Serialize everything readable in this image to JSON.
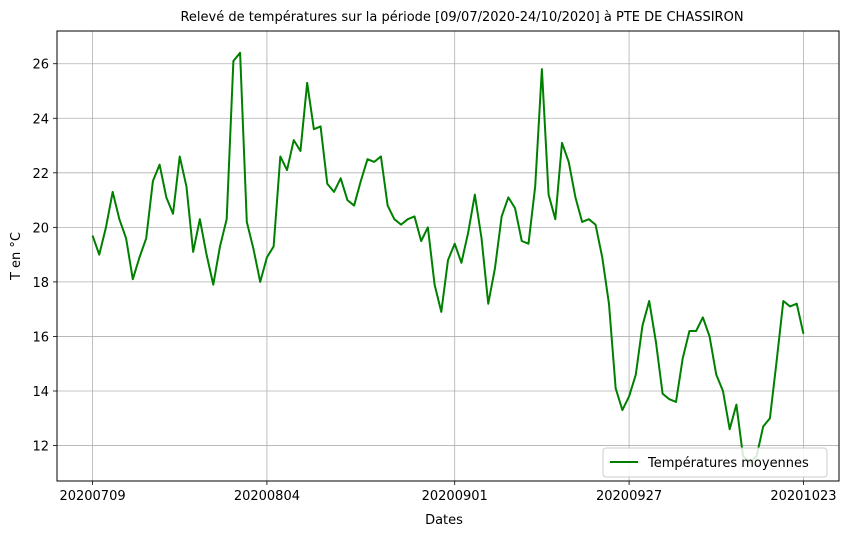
{
  "chart_data": {
    "type": "line",
    "title": "Relevé de températures sur la période [09/07/2020-24/10/2020] à PTE DE CHASSIRON",
    "xlabel": "Dates",
    "ylabel": "T en °C",
    "x_ticks": [
      {
        "day": 0,
        "label": "20200709"
      },
      {
        "day": 26,
        "label": "20200804"
      },
      {
        "day": 54,
        "label": "20200901"
      },
      {
        "day": 80,
        "label": "20200927"
      },
      {
        "day": 106,
        "label": "20201023"
      }
    ],
    "xlim": [
      -5.3,
      111.3
    ],
    "ylim": [
      10.7,
      27.2
    ],
    "y_ticks": [
      12,
      14,
      16,
      18,
      20,
      22,
      24,
      26
    ],
    "grid": true,
    "legend_position": "lower-right",
    "series": [
      {
        "name": "Températures moyennes",
        "color": "#008000",
        "values": [
          19.7,
          19.0,
          20.0,
          21.3,
          20.3,
          19.6,
          18.1,
          18.9,
          19.6,
          21.7,
          22.3,
          21.1,
          20.5,
          22.6,
          21.5,
          19.1,
          20.3,
          19.0,
          17.9,
          19.3,
          20.3,
          26.1,
          26.4,
          20.2,
          19.2,
          18.0,
          18.9,
          19.3,
          22.6,
          22.1,
          23.2,
          22.8,
          25.3,
          23.6,
          23.7,
          21.6,
          21.3,
          21.8,
          21.0,
          20.8,
          21.7,
          22.5,
          22.4,
          22.6,
          20.8,
          20.3,
          20.1,
          20.3,
          20.4,
          19.5,
          20.0,
          17.9,
          16.9,
          18.8,
          19.4,
          18.7,
          19.8,
          21.2,
          19.6,
          17.2,
          18.5,
          20.4,
          21.1,
          20.7,
          19.5,
          19.4,
          21.5,
          25.8,
          21.2,
          20.3,
          23.1,
          22.4,
          21.1,
          20.2,
          20.3,
          20.1,
          18.9,
          17.2,
          14.1,
          13.3,
          13.8,
          14.6,
          16.4,
          17.3,
          15.8,
          13.9,
          13.7,
          13.6,
          15.2,
          16.2,
          16.2,
          16.7,
          16.0,
          14.6,
          14.0,
          12.6,
          13.5,
          11.6,
          11.4,
          11.6,
          12.7,
          13.0,
          15.1,
          17.3,
          17.1,
          17.2,
          16.1
        ]
      }
    ]
  }
}
